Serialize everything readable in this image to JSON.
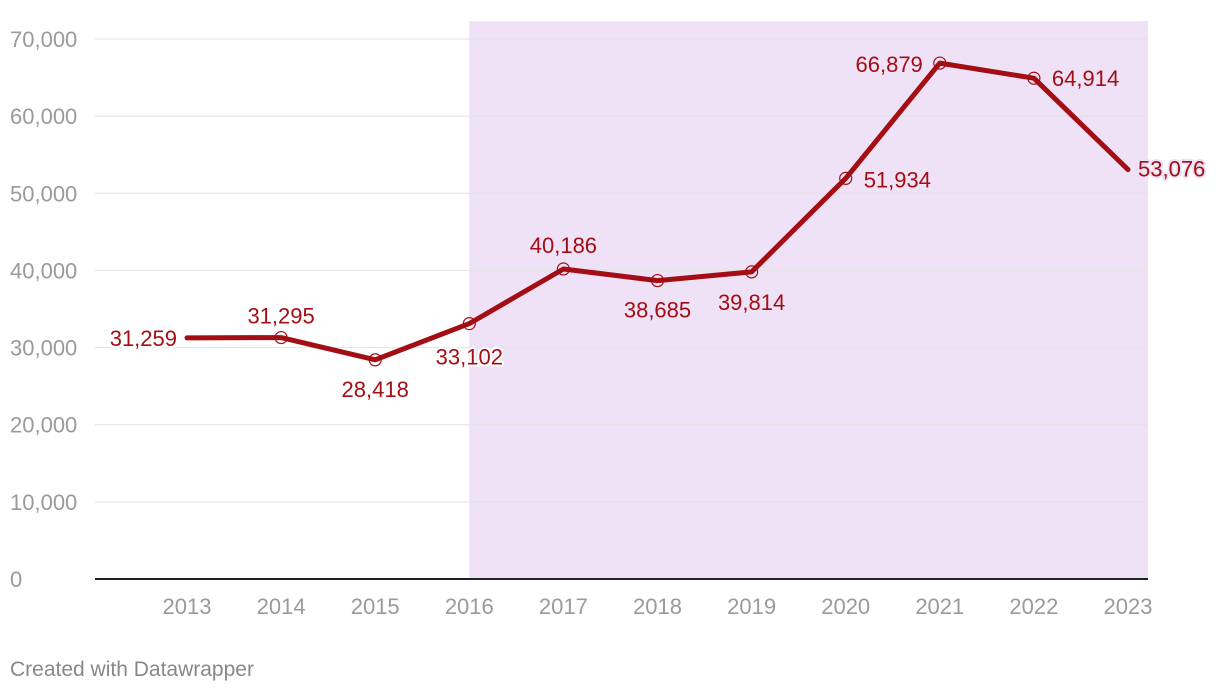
{
  "chart_data": {
    "type": "line",
    "title": "",
    "xlabel": "",
    "ylabel": "",
    "x": [
      "2013",
      "2014",
      "2015",
      "2016",
      "2017",
      "2018",
      "2019",
      "2020",
      "2021",
      "2022",
      "2023"
    ],
    "series": [
      {
        "values": [
          31259,
          31295,
          28418,
          33102,
          40186,
          38685,
          39814,
          51934,
          66879,
          64914,
          53076
        ]
      }
    ],
    "value_labels": [
      "31,259",
      "31,295",
      "28,418",
      "33,102",
      "40,186",
      "38,685",
      "39,814",
      "51,934",
      "66,879",
      "64,914",
      "53,076"
    ],
    "ylim": [
      0,
      70000
    ],
    "yticks": [
      0,
      10000,
      20000,
      30000,
      40000,
      50000,
      60000,
      70000
    ],
    "ytick_labels": [
      "0",
      "10,000",
      "20,000",
      "30,000",
      "40,000",
      "50,000",
      "60,000",
      "70,000"
    ],
    "highlight_band": {
      "from": "2016",
      "to": "2023",
      "color": "#efe2f6"
    },
    "line_color": "#a30d14",
    "grid": true,
    "legend": "none"
  },
  "footer": {
    "credit": "Created with Datawrapper"
  }
}
